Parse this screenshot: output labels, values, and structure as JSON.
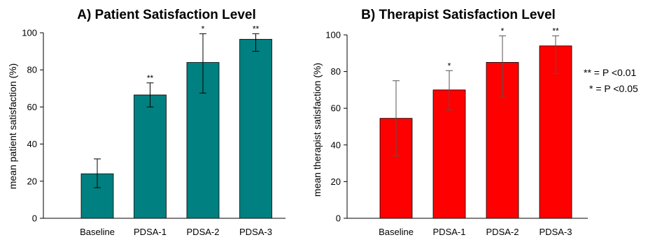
{
  "chart_data": [
    {
      "type": "bar",
      "title": "A) Patient Satisfaction Level",
      "xlabel": "",
      "ylabel": "mean patient satisfaction (%)",
      "ylim": [
        0,
        100
      ],
      "yticks": [
        "0",
        "20",
        "40",
        "60",
        "80",
        "100"
      ],
      "categories": [
        "Baseline",
        "PDSA-1",
        "PDSA-2",
        "PDSA-3"
      ],
      "values": [
        24,
        66.5,
        84,
        96.5
      ],
      "error_low": [
        16.5,
        60,
        67.5,
        90
      ],
      "error_high": [
        32,
        73,
        99.5,
        99.5
      ],
      "significance": [
        "",
        "**",
        "*",
        "**"
      ],
      "color": "#008080",
      "grid": false
    },
    {
      "type": "bar",
      "title": "B) Therapist Satisfaction Level",
      "xlabel": "",
      "ylabel": "mean therapist satisfaction (%)",
      "ylim": [
        0,
        100
      ],
      "yticks": [
        "0",
        "20",
        "40",
        "60",
        "80",
        "100"
      ],
      "categories": [
        "Baseline",
        "PDSA-1",
        "PDSA-2",
        "PDSA-3"
      ],
      "values": [
        54.5,
        70,
        85,
        94
      ],
      "error_low": [
        34,
        59,
        66,
        79
      ],
      "error_high": [
        75,
        80.5,
        99.5,
        99.5
      ],
      "significance": [
        "",
        "*",
        "*",
        "**"
      ],
      "color": "#ff0000",
      "grid": false
    }
  ],
  "legend_notes": [
    "** = P <0.01",
    "* = P <0.05"
  ]
}
